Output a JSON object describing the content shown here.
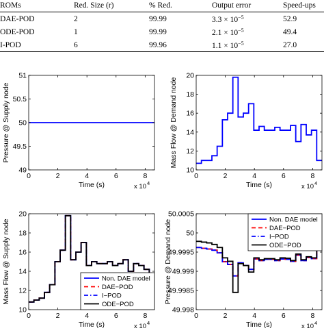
{
  "table": {
    "headers": [
      "ROMs",
      "Red. Size (r)",
      "% Red.",
      "Output error",
      "Speed-ups"
    ],
    "rows": [
      {
        "rom": "DAE-POD",
        "size": "2",
        "red": "99.99",
        "err_mant": "3.3 × 10",
        "err_exp": "−5",
        "speedup": "52.9"
      },
      {
        "rom": "ODE-POD",
        "size": "1",
        "red": "99.99",
        "err_mant": "2.1 × 10",
        "err_exp": "−5",
        "speedup": "49.4"
      },
      {
        "rom": "I-POD",
        "size": "6",
        "red": "99.96",
        "err_mant": "1.1 × 10",
        "err_exp": "−5",
        "speedup": "27.0"
      }
    ]
  },
  "chart_data": [
    {
      "type": "line",
      "ylabel": "Pressure @ Supply node",
      "xlabel": "Time (s)",
      "x_multiplier": "x 10",
      "x_multiplier_exp": "4",
      "xlim": [
        0,
        8.64
      ],
      "ylim": [
        49,
        51
      ],
      "xticks": [
        "0",
        "2",
        "4",
        "6",
        "8"
      ],
      "yticks": [
        "49",
        "49.5",
        "50",
        "50.5",
        "51"
      ],
      "series": [
        {
          "color": "#0000ff",
          "x": [
            0,
            8.64
          ],
          "y": [
            50,
            50
          ]
        }
      ]
    },
    {
      "type": "line",
      "ylabel": "Mass Flow  @ Demand node",
      "xlabel": "Time (s)",
      "x_multiplier": "x 10",
      "x_multiplier_exp": "4",
      "xlim": [
        0,
        8.64
      ],
      "ylim": [
        10,
        20
      ],
      "xticks": [
        "0",
        "2",
        "4",
        "6",
        "8"
      ],
      "yticks": [
        "10",
        "12",
        "14",
        "16",
        "18",
        "20"
      ],
      "series": [
        {
          "color": "#0000ff",
          "step": true,
          "x": [
            0,
            0.36,
            0.72,
            1.08,
            1.44,
            1.8,
            2.16,
            2.52,
            2.88,
            3.24,
            3.6,
            3.96,
            4.32,
            4.68,
            5.04,
            5.4,
            5.76,
            6.12,
            6.48,
            6.84,
            7.2,
            7.56,
            7.92,
            8.28,
            8.64
          ],
          "y": [
            10.7,
            11.0,
            11.0,
            11.5,
            12.5,
            15.3,
            16.0,
            19.8,
            15.6,
            16.0,
            17.0,
            14.2,
            14.6,
            14.2,
            14.2,
            14.5,
            14.2,
            14.2,
            14.7,
            13.0,
            14.8,
            13.7,
            14.2,
            11.0,
            11.0
          ]
        }
      ]
    },
    {
      "type": "line",
      "ylabel": "Mass Flow @ Supply node",
      "xlabel": "Time (s)",
      "x_multiplier": "x 10",
      "x_multiplier_exp": "4",
      "xlim": [
        0,
        8.64
      ],
      "ylim": [
        10,
        20
      ],
      "xticks": [
        "0",
        "2",
        "4",
        "6",
        "8"
      ],
      "yticks": [
        "10",
        "12",
        "14",
        "16",
        "18",
        "20"
      ],
      "legend": {
        "placement": "lower-right",
        "entries": [
          "Non. DAE model",
          "DAE−POD",
          "I−POD",
          "ODE−POD"
        ]
      },
      "series": [
        {
          "name": "Non. DAE model",
          "color": "#0000ff",
          "step": true,
          "x": [
            0,
            0.36,
            0.72,
            1.08,
            1.44,
            1.8,
            2.16,
            2.52,
            2.88,
            3.24,
            3.6,
            3.96,
            4.32,
            4.68,
            5.04,
            5.4,
            5.76,
            6.12,
            6.48,
            6.84,
            7.2,
            7.56,
            7.92,
            8.28,
            8.64
          ],
          "y": [
            10.8,
            11.0,
            11.2,
            11.8,
            12.6,
            15.0,
            16.2,
            19.8,
            15.2,
            16.0,
            17.0,
            14.6,
            15.0,
            14.8,
            14.8,
            15.0,
            14.6,
            14.8,
            15.2,
            14.0,
            14.8,
            14.6,
            14.2,
            11.0,
            11.0
          ]
        },
        {
          "name": "DAE−POD",
          "color": "#ff0000",
          "dash": "6,4",
          "step": true,
          "x": [
            0,
            0.36,
            0.72,
            1.08,
            1.44,
            1.8,
            2.16,
            2.52,
            2.88,
            3.24,
            3.6,
            3.96,
            4.32,
            4.68,
            5.04,
            5.4,
            5.76,
            6.12,
            6.48,
            6.84,
            7.2,
            7.56,
            7.92,
            8.28,
            8.64
          ],
          "y": [
            10.8,
            11.0,
            11.2,
            11.8,
            12.6,
            15.0,
            16.2,
            19.8,
            15.2,
            16.0,
            17.0,
            14.6,
            15.0,
            14.8,
            14.8,
            15.0,
            14.6,
            14.8,
            15.2,
            14.0,
            14.8,
            14.6,
            14.2,
            11.0,
            11.0
          ]
        },
        {
          "name": "I−POD",
          "color": "#0000ff",
          "dash": "6,3,1.5,3",
          "step": true,
          "x": [
            0,
            0.36,
            0.72,
            1.08,
            1.44,
            1.8,
            2.16,
            2.52,
            2.88,
            3.24,
            3.6,
            3.96,
            4.32,
            4.68,
            5.04,
            5.4,
            5.76,
            6.12,
            6.48,
            6.84,
            7.2,
            7.56,
            7.92,
            8.28,
            8.64
          ],
          "y": [
            10.8,
            11.0,
            11.2,
            11.8,
            12.6,
            15.0,
            16.2,
            19.8,
            15.2,
            16.0,
            17.0,
            14.6,
            15.0,
            14.8,
            14.8,
            15.0,
            14.6,
            14.8,
            15.2,
            14.0,
            14.8,
            14.6,
            14.2,
            11.0,
            11.0
          ]
        },
        {
          "name": "ODE−POD",
          "color": "#000000",
          "step": true,
          "x": [
            0,
            0.36,
            0.72,
            1.08,
            1.44,
            1.8,
            2.16,
            2.52,
            2.88,
            3.24,
            3.6,
            3.96,
            4.32,
            4.68,
            5.04,
            5.4,
            5.76,
            6.12,
            6.48,
            6.84,
            7.2,
            7.56,
            7.92,
            8.28,
            8.64
          ],
          "y": [
            10.8,
            11.0,
            11.2,
            11.8,
            12.6,
            15.0,
            16.2,
            19.8,
            15.2,
            16.0,
            17.0,
            14.6,
            15.0,
            14.8,
            14.8,
            15.0,
            14.6,
            14.8,
            15.2,
            14.0,
            14.8,
            14.6,
            14.2,
            11.0,
            11.0
          ]
        }
      ]
    },
    {
      "type": "line",
      "ylabel": "Pressure @ Demand node",
      "xlabel": "Time (s)",
      "x_multiplier": "x 10",
      "x_multiplier_exp": "4",
      "xlim": [
        0,
        8.64
      ],
      "ylim": [
        49.998,
        50.0005
      ],
      "xticks": [
        "0",
        "2",
        "4",
        "6",
        "8"
      ],
      "yticks": [
        "49.998",
        "49.9985",
        "49.999",
        "49.9995",
        "50",
        "50.0005"
      ],
      "legend": {
        "placement": "top-right",
        "entries": [
          "Non. DAE model",
          "DAE−POD",
          "I−POD",
          "ODE−POD"
        ]
      },
      "series": [
        {
          "name": "Non. DAE model",
          "color": "#0000ff",
          "step": true,
          "x": [
            0,
            0.36,
            0.72,
            1.08,
            1.44,
            1.8,
            2.16,
            2.52,
            2.88,
            3.24,
            3.6,
            3.96,
            4.32,
            4.68,
            5.04,
            5.4,
            5.76,
            6.12,
            6.48,
            6.84,
            7.2,
            7.56,
            7.92,
            8.28,
            8.64
          ],
          "y": [
            49.99962,
            49.9996,
            49.99958,
            49.99955,
            49.99948,
            49.99925,
            49.99918,
            49.99888,
            49.99922,
            49.99915,
            49.99905,
            49.99932,
            49.99928,
            49.99931,
            49.99931,
            49.99928,
            49.99932,
            49.99931,
            49.99926,
            49.99942,
            49.99928,
            49.99936,
            49.99933,
            49.9996,
            49.9996
          ]
        },
        {
          "name": "DAE−POD",
          "color": "#ff0000",
          "dash": "6,4",
          "step": true,
          "x": [
            0,
            0.36,
            0.72,
            1.08,
            1.44,
            1.8,
            2.16,
            2.52,
            2.88,
            3.24,
            3.6,
            3.96,
            4.32,
            4.68,
            5.04,
            5.4,
            5.76,
            6.12,
            6.48,
            6.84,
            7.2,
            7.56,
            7.92,
            8.28,
            8.64
          ],
          "y": [
            49.99962,
            49.9996,
            49.99958,
            49.99955,
            49.99948,
            49.99925,
            49.99918,
            49.99888,
            49.99922,
            49.99915,
            49.99905,
            49.99932,
            49.99928,
            49.99931,
            49.99931,
            49.99928,
            49.99932,
            49.99931,
            49.99926,
            49.99942,
            49.99928,
            49.99936,
            49.99933,
            49.9996,
            49.9996
          ]
        },
        {
          "name": "I−POD",
          "color": "#0000ff",
          "dash": "6,3,1.5,3",
          "step": true,
          "x": [
            0,
            0.36,
            0.72,
            1.08,
            1.44,
            1.8,
            2.16,
            2.52,
            2.88,
            3.24,
            3.6,
            3.96,
            4.32,
            4.68,
            5.04,
            5.4,
            5.76,
            6.12,
            6.48,
            6.84,
            7.2,
            7.56,
            7.92,
            8.28,
            8.64
          ],
          "y": [
            49.99962,
            49.9996,
            49.99958,
            49.99955,
            49.99948,
            49.99925,
            49.99918,
            49.99888,
            49.99922,
            49.99915,
            49.99905,
            49.99932,
            49.99928,
            49.99931,
            49.99931,
            49.99928,
            49.99932,
            49.99931,
            49.99926,
            49.99942,
            49.99928,
            49.99936,
            49.99933,
            49.9996,
            49.9996
          ]
        },
        {
          "name": "ODE−POD",
          "color": "#000000",
          "step": true,
          "x": [
            0,
            0.36,
            0.72,
            1.08,
            1.44,
            1.8,
            2.16,
            2.52,
            2.88,
            3.24,
            3.6,
            3.96,
            4.32,
            4.68,
            5.04,
            5.4,
            5.76,
            6.12,
            6.48,
            6.84,
            7.2,
            7.56,
            7.92,
            8.28,
            8.64
          ],
          "y": [
            49.99978,
            49.99976,
            49.99974,
            49.9997,
            49.99962,
            49.99935,
            49.99926,
            49.99845,
            49.9992,
            49.99915,
            49.99898,
            49.99935,
            49.9993,
            49.99933,
            49.99933,
            49.9993,
            49.99935,
            49.99934,
            49.99928,
            49.99945,
            49.9993,
            49.99938,
            49.99935,
            49.99965,
            49.99965
          ]
        }
      ]
    }
  ]
}
